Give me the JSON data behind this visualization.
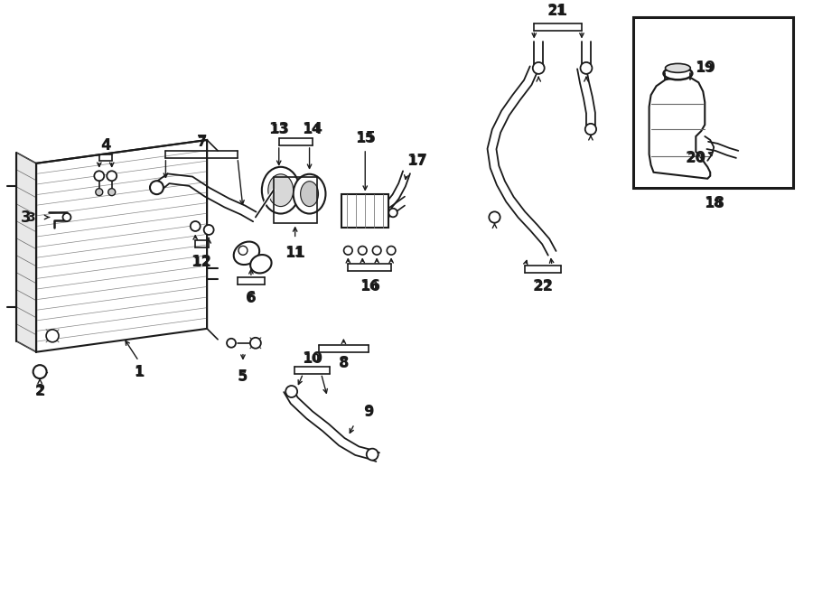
{
  "bg_color": "#ffffff",
  "lc": "#1a1a1a",
  "fig_w": 9.0,
  "fig_h": 6.61,
  "dpi": 100,
  "lw": 1.3
}
